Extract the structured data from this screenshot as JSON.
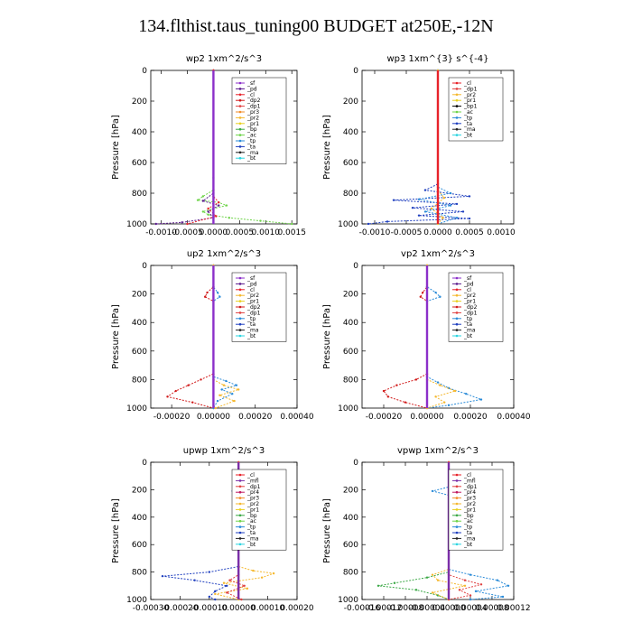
{
  "title": "134.flthist.taus_tuning00  BUDGET at250E,-12N",
  "series_colors": {
    "_sf": "#8b2fc9",
    "_pd": "#5a1a8c",
    "_cl": "#e8222a",
    "_dp2": "#d11a1a",
    "_dp1": "#e04040",
    "_pr3": "#f28c28",
    "_pr2": "#f5b82e",
    "_pr1": "#e8d020",
    "_bp": "#3aa845",
    "_ac": "#6fd44a",
    "_tp": "#2a8bd8",
    "_ta": "#1f3fbf",
    "_ma": "#222222",
    "_bt": "#2ad4e0",
    "_mfl": "#7b2fa8",
    "_pr4": "#c01860"
  },
  "chart_data": [
    {
      "type": "line",
      "title": "wp2   1xm^2/s^3",
      "ylabel": "Pressure  [hPa]",
      "ylim": [
        1000,
        0
      ],
      "xlim": [
        -0.0012,
        0.0016
      ],
      "yticks": [
        0,
        200,
        400,
        600,
        800,
        1000
      ],
      "xticks": [
        -0.001,
        -0.0005,
        0.0,
        0.0005,
        0.001,
        0.0015
      ],
      "xtick_labels": [
        "-0.0010",
        "-0.0005",
        "0.0000",
        "0.0005",
        "0.0010",
        "0.0015"
      ],
      "legend": [
        "_sf",
        "_pd",
        "_cl",
        "_dp2",
        "_dp1",
        "_pr3",
        "_pr2",
        "_pr1",
        "_bp",
        "_ac",
        "_tp",
        "_ta",
        "_ma",
        "_bt"
      ],
      "series": [
        {
          "name": "_ac",
          "points": [
            [
              0,
              0
            ],
            [
              0,
              700
            ],
            [
              0.0,
              780
            ],
            [
              -0.0002,
              820
            ],
            [
              -0.0003,
              845
            ],
            [
              0.0001,
              860
            ],
            [
              0.00025,
              880
            ],
            [
              0.0,
              900
            ],
            [
              -0.0002,
              920
            ],
            [
              -0.0001,
              940
            ],
            [
              0.0003,
              960
            ],
            [
              0.0009,
              980
            ],
            [
              0.0015,
              1000
            ]
          ]
        },
        {
          "name": "_pd",
          "points": [
            [
              0,
              0
            ],
            [
              0,
              800
            ],
            [
              -0.0002,
              850
            ],
            [
              0.0001,
              880
            ],
            [
              -0.0001,
              920
            ],
            [
              0.0,
              960
            ],
            [
              -0.0006,
              990
            ],
            [
              -0.0011,
              1000
            ]
          ]
        },
        {
          "name": "_cl",
          "points": [
            [
              0,
              0
            ],
            [
              0,
              820
            ],
            [
              0.0001,
              860
            ],
            [
              -0.0001,
              900
            ],
            [
              5e-05,
              950
            ],
            [
              -0.0005,
              1000
            ]
          ]
        },
        {
          "name": "_sf",
          "points": [
            [
              0,
              0
            ],
            [
              0,
              1000
            ]
          ]
        }
      ]
    },
    {
      "type": "line",
      "title": "wp3   1xm^{3} s^{-4}",
      "ylabel": "Pressure  [hPa]",
      "ylim": [
        1000,
        0
      ],
      "xlim": [
        -0.0012,
        0.0012
      ],
      "yticks": [
        0,
        200,
        400,
        600,
        800,
        1000
      ],
      "xticks": [
        -0.001,
        -0.0005,
        0.0,
        0.0005,
        0.001
      ],
      "xtick_labels": [
        "-0.0010",
        "-0.0005",
        "0.0000",
        "0.0005",
        "0.0010"
      ],
      "legend": [
        "_cl",
        "_dp1",
        "_pr2",
        "_pr1",
        "_bp1",
        "_ac",
        "_tp",
        "_ta",
        "_ma",
        "_bt"
      ],
      "series": [
        {
          "name": "_ta",
          "points": [
            [
              0,
              0
            ],
            [
              0,
              740
            ],
            [
              -0.0002,
              780
            ],
            [
              0.0005,
              820
            ],
            [
              -0.0007,
              845
            ],
            [
              0.0003,
              870
            ],
            [
              -0.0004,
              895
            ],
            [
              0.0004,
              920
            ],
            [
              -0.0003,
              945
            ],
            [
              0.0005,
              965
            ],
            [
              -0.0008,
              985
            ],
            [
              -0.0011,
              1000
            ]
          ]
        },
        {
          "name": "_tp",
          "points": [
            [
              0,
              0
            ],
            [
              0,
              760
            ],
            [
              0.0002,
              800
            ],
            [
              -0.0003,
              840
            ],
            [
              0.0002,
              880
            ],
            [
              -0.0002,
              920
            ],
            [
              0.0003,
              960
            ],
            [
              0.0,
              1000
            ]
          ]
        },
        {
          "name": "_pr2",
          "points": [
            [
              0,
              0
            ],
            [
              0,
              780
            ],
            [
              0.0001,
              830
            ],
            [
              -0.0001,
              900
            ],
            [
              8e-05,
              960
            ],
            [
              0,
              1000
            ]
          ]
        },
        {
          "name": "_cl",
          "points": [
            [
              0,
              0
            ],
            [
              0,
              1000
            ]
          ]
        }
      ]
    },
    {
      "type": "line",
      "title": "up2   1xm^2/s^3",
      "ylabel": "Pressure  [hPa]",
      "ylim": [
        1000,
        0
      ],
      "xlim": [
        -0.0003,
        0.0004
      ],
      "yticks": [
        0,
        200,
        400,
        600,
        800,
        1000
      ],
      "xticks": [
        -0.0002,
        0.0,
        0.0002,
        0.0004
      ],
      "xtick_labels": [
        "-0.00020",
        "0.00000",
        "0.00020",
        "0.00040"
      ],
      "legend": [
        "_sf",
        "_pd",
        "_cl",
        "_pr2",
        "_pr1",
        "_dp2",
        "_dp1",
        "_tp",
        "_ta",
        "_ma",
        "_bt"
      ],
      "series": [
        {
          "name": "_dp2",
          "points": [
            [
              0,
              0
            ],
            [
              0,
              150
            ],
            [
              -3e-05,
              190
            ],
            [
              -4e-05,
              220
            ],
            [
              0,
              250
            ],
            [
              0,
              760
            ],
            [
              -6e-05,
              800
            ],
            [
              -0.00012,
              840
            ],
            [
              -0.00018,
              880
            ],
            [
              -0.00022,
              920
            ],
            [
              -0.0001,
              960
            ],
            [
              0.0,
              1000
            ]
          ]
        },
        {
          "name": "_tp",
          "points": [
            [
              0,
              0
            ],
            [
              0,
              150
            ],
            [
              2e-05,
              190
            ],
            [
              3e-05,
              220
            ],
            [
              0,
              250
            ],
            [
              0,
              780
            ],
            [
              6e-05,
              810
            ],
            [
              0.00011,
              840
            ],
            [
              4e-05,
              870
            ],
            [
              9e-05,
              900
            ],
            [
              2e-05,
              950
            ],
            [
              0,
              1000
            ]
          ]
        },
        {
          "name": "_pr2",
          "points": [
            [
              0,
              0
            ],
            [
              0,
              800
            ],
            [
              5e-05,
              840
            ],
            [
              0.00012,
              870
            ],
            [
              3e-05,
              910
            ],
            [
              0.0001,
              950
            ],
            [
              1e-05,
              1000
            ]
          ]
        },
        {
          "name": "_sf",
          "points": [
            [
              0,
              0
            ],
            [
              0,
              1000
            ]
          ]
        }
      ]
    },
    {
      "type": "line",
      "title": "vp2   1xm^2/s^3",
      "ylabel": "Pressure  [hPa]",
      "ylim": [
        1000,
        0
      ],
      "xlim": [
        -0.0003,
        0.0004
      ],
      "yticks": [
        0,
        200,
        400,
        600,
        800,
        1000
      ],
      "xticks": [
        -0.0002,
        0.0,
        0.0002,
        0.0004
      ],
      "xtick_labels": [
        "-0.00020",
        "0.00000",
        "0.00020",
        "0.00040"
      ],
      "legend": [
        "_sf",
        "_pd",
        "_cl",
        "_pr2",
        "_pr1",
        "_dp2",
        "_dp1",
        "_tp",
        "_ta",
        "_ma",
        "_bt"
      ],
      "series": [
        {
          "name": "_dp2",
          "points": [
            [
              0,
              0
            ],
            [
              0,
              150
            ],
            [
              -2e-05,
              190
            ],
            [
              -3e-05,
              220
            ],
            [
              0,
              250
            ],
            [
              0,
              760
            ],
            [
              -5e-05,
              800
            ],
            [
              -0.00014,
              840
            ],
            [
              -0.0002,
              880
            ],
            [
              -0.00018,
              920
            ],
            [
              -0.0001,
              960
            ],
            [
              0.0,
              1000
            ]
          ]
        },
        {
          "name": "_tp",
          "points": [
            [
              0,
              0
            ],
            [
              0,
              150
            ],
            [
              4e-05,
              190
            ],
            [
              6e-05,
              220
            ],
            [
              0,
              250
            ],
            [
              0,
              780
            ],
            [
              5e-05,
              820
            ],
            [
              0.0001,
              860
            ],
            [
              0.00018,
              900
            ],
            [
              0.00025,
              940
            ],
            [
              0.0001,
              980
            ],
            [
              0,
              1000
            ]
          ]
        },
        {
          "name": "_pr2",
          "points": [
            [
              0,
              0
            ],
            [
              0,
              800
            ],
            [
              6e-05,
              840
            ],
            [
              0.00013,
              880
            ],
            [
              4e-05,
              920
            ],
            [
              8e-05,
              960
            ],
            [
              0,
              1000
            ]
          ]
        },
        {
          "name": "_sf",
          "points": [
            [
              0,
              0
            ],
            [
              0,
              1000
            ]
          ]
        }
      ]
    },
    {
      "type": "line",
      "title": "upwp   1xm^2/s^3",
      "ylabel": "Pressure  [hPa]",
      "ylim": [
        1000,
        0
      ],
      "xlim": [
        -0.0003,
        0.0002
      ],
      "yticks": [
        0,
        200,
        400,
        600,
        800,
        1000
      ],
      "xticks": [
        -0.0003,
        -0.0002,
        -0.0001,
        0.0,
        0.0001,
        0.0002
      ],
      "xtick_labels": [
        "-0.00030",
        "-0.00020",
        "-0.00010",
        "0.00000",
        "0.00010",
        "0.00020"
      ],
      "legend": [
        "_cl",
        "_mfl",
        "_dp1",
        "_pr4",
        "_pr3",
        "_pr2",
        "_pr1",
        "_bp",
        "_ac",
        "_tp",
        "_ta",
        "_ma",
        "_bt"
      ],
      "series": [
        {
          "name": "_ta",
          "points": [
            [
              0,
              0
            ],
            [
              0,
              180
            ],
            [
              -2e-05,
              210
            ],
            [
              0,
              240
            ],
            [
              0,
              760
            ],
            [
              -0.0001,
              800
            ],
            [
              -0.00026,
              830
            ],
            [
              -0.00015,
              860
            ],
            [
              -4e-05,
              900
            ],
            [
              -8e-05,
              940
            ],
            [
              -0.0001,
              980
            ],
            [
              -8e-05,
              1000
            ]
          ]
        },
        {
          "name": "_pr2",
          "points": [
            [
              0,
              0
            ],
            [
              0,
              760
            ],
            [
              5e-05,
              790
            ],
            [
              0.00012,
              810
            ],
            [
              8e-05,
              840
            ],
            [
              -5e-05,
              880
            ],
            [
              3e-05,
              920
            ],
            [
              -8e-05,
              960
            ],
            [
              0,
              1000
            ]
          ]
        },
        {
          "name": "_dp1",
          "points": [
            [
              0,
              0
            ],
            [
              0,
              820
            ],
            [
              -3e-05,
              860
            ],
            [
              2e-05,
              900
            ],
            [
              -4e-05,
              950
            ],
            [
              1e-05,
              1000
            ]
          ]
        },
        {
          "name": "_mfl",
          "points": [
            [
              0,
              0
            ],
            [
              0,
              1000
            ]
          ]
        }
      ]
    },
    {
      "type": "line",
      "title": "vpwp   1xm^2/s^3",
      "ylabel": "Pressure  [hPa]",
      "ylim": [
        1000,
        0
      ],
      "xlim": [
        -0.00016,
        0.00012
      ],
      "yticks": [
        0,
        200,
        400,
        600,
        800,
        1000
      ],
      "xticks": [
        -0.00016,
        -0.00012,
        -8e-05,
        -4e-05,
        0.0,
        4e-05,
        8e-05,
        0.00012
      ],
      "xtick_labels": [
        "-0.00016",
        "-0.00012",
        "-0.00008",
        "-0.00004",
        "0.00000",
        "0.00004",
        "0.00008",
        "0.00012"
      ],
      "legend": [
        "_cl",
        "_mfl",
        "_dp1",
        "_pr4",
        "_pr3",
        "_pr2",
        "_pr1",
        "_bp",
        "_ac",
        "_tp",
        "_ta",
        "_ma",
        "_bt"
      ],
      "series": [
        {
          "name": "_tp",
          "points": [
            [
              0,
              0
            ],
            [
              0,
              180
            ],
            [
              -3e-05,
              210
            ],
            [
              0,
              240
            ],
            [
              0,
              780
            ],
            [
              4e-05,
              820
            ],
            [
              9e-05,
              860
            ],
            [
              0.00011,
              900
            ],
            [
              5e-05,
              940
            ],
            [
              0.0001,
              980
            ],
            [
              4e-05,
              1000
            ]
          ]
        },
        {
          "name": "_bp",
          "points": [
            [
              0,
              0
            ],
            [
              0,
              800
            ],
            [
              -4e-05,
              840
            ],
            [
              -0.0001,
              880
            ],
            [
              -0.00013,
              900
            ],
            [
              -6e-05,
              930
            ],
            [
              -2e-05,
              970
            ],
            [
              0,
              1000
            ]
          ]
        },
        {
          "name": "_pr2",
          "points": [
            [
              0,
              0
            ],
            [
              0,
              780
            ],
            [
              -3e-05,
              820
            ],
            [
              -2e-05,
              860
            ],
            [
              3e-05,
              900
            ],
            [
              -3e-05,
              950
            ],
            [
              0,
              1000
            ]
          ]
        },
        {
          "name": "_dp1",
          "points": [
            [
              0,
              0
            ],
            [
              0,
              820
            ],
            [
              3e-05,
              860
            ],
            [
              6e-05,
              890
            ],
            [
              2e-05,
              930
            ],
            [
              4e-05,
              970
            ],
            [
              0,
              1000
            ]
          ]
        },
        {
          "name": "_mfl",
          "points": [
            [
              0,
              0
            ],
            [
              0,
              1000
            ]
          ]
        }
      ]
    }
  ]
}
